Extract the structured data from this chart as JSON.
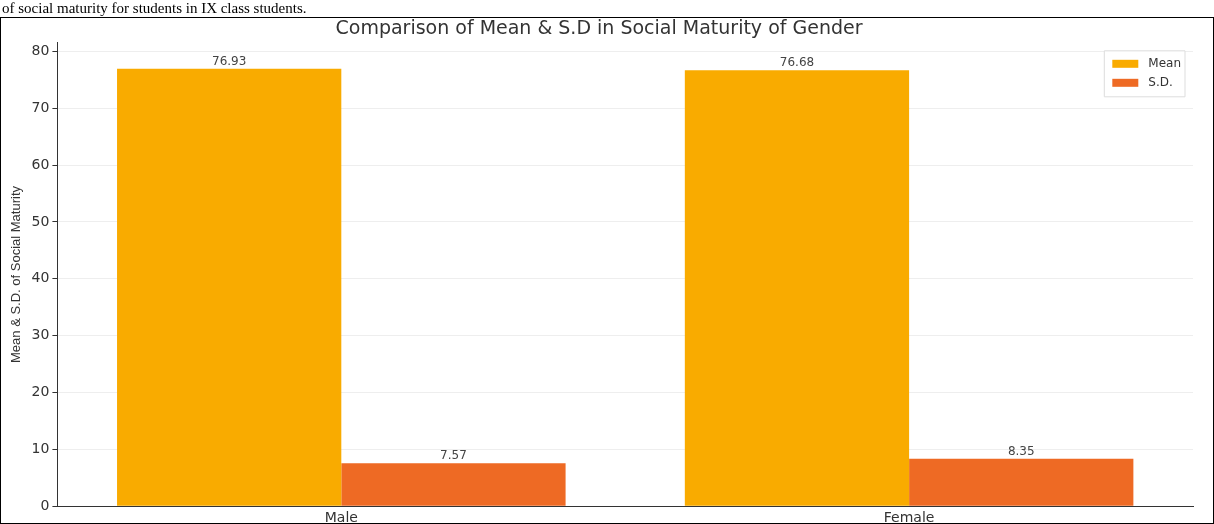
{
  "chart_data": {
    "type": "bar",
    "title": "Comparison of Mean & S.D in Social Maturity of Gender",
    "ylabel": "Mean & S.D. of Social Maturity",
    "categories": [
      "Male",
      "Female"
    ],
    "series": [
      {
        "name": "Mean",
        "color": "#f9ab00",
        "values": [
          76.93,
          76.68
        ]
      },
      {
        "name": "S.D.",
        "color": "#ee6a24",
        "values": [
          7.57,
          8.35
        ]
      }
    ],
    "ylim": [
      0,
      81.5
    ],
    "yticks": [
      0,
      10,
      20,
      30,
      40,
      50,
      60,
      70,
      80
    ],
    "grid": "y",
    "legend": "top right",
    "data_labels": true,
    "annotations": [
      "of social maturity for students in IX class students."
    ]
  }
}
